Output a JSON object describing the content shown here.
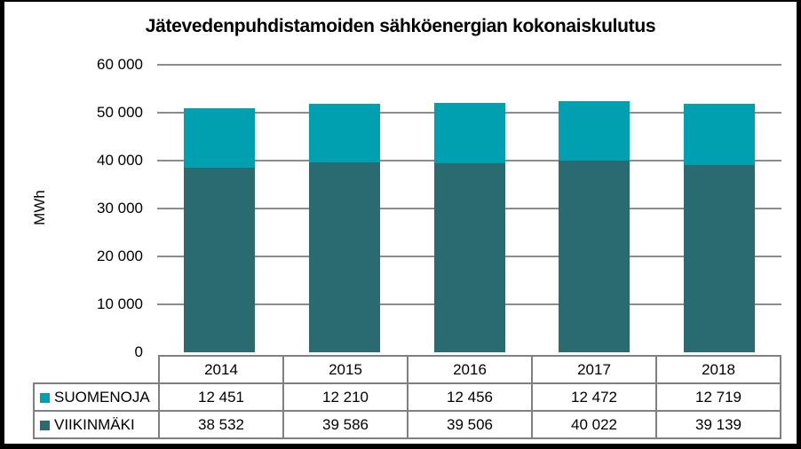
{
  "chart": {
    "title": "Jätevedenpuhdistamoiden sähköenergian kokonaiskulutus",
    "y_axis_title": "MWh"
  },
  "chart_data": {
    "type": "bar",
    "stacked": true,
    "title": "Jätevedenpuhdistamoiden sähköenergian kokonaiskulutus",
    "xlabel": "",
    "ylabel": "MWh",
    "categories": [
      "2014",
      "2015",
      "2016",
      "2017",
      "2018"
    ],
    "series": [
      {
        "name": "SUOMENOJA",
        "color": "#00A0B0",
        "values": [
          12451,
          12210,
          12456,
          12472,
          12719
        ],
        "value_labels": [
          "12 451",
          "12 210",
          "12 456",
          "12 472",
          "12 719"
        ]
      },
      {
        "name": "VIIKINMÄKI",
        "color": "#2A6A71",
        "values": [
          38532,
          39586,
          39506,
          40022,
          39139
        ],
        "value_labels": [
          "38 532",
          "39 586",
          "39 506",
          "40 022",
          "39 139"
        ]
      }
    ],
    "stack_order_bottom_to_top": [
      "VIIKINMÄKI",
      "SUOMENOJA"
    ],
    "ylim": [
      0,
      60000
    ],
    "ytick_step": 10000,
    "ytick_labels": [
      "0",
      "10 000",
      "20 000",
      "30 000",
      "40 000",
      "50 000",
      "60 000"
    ],
    "grid": true,
    "gridline_color": "#8C8C8C",
    "legend_position": "table-rows-left"
  },
  "table": {
    "border_color": "#7F7F7F"
  }
}
